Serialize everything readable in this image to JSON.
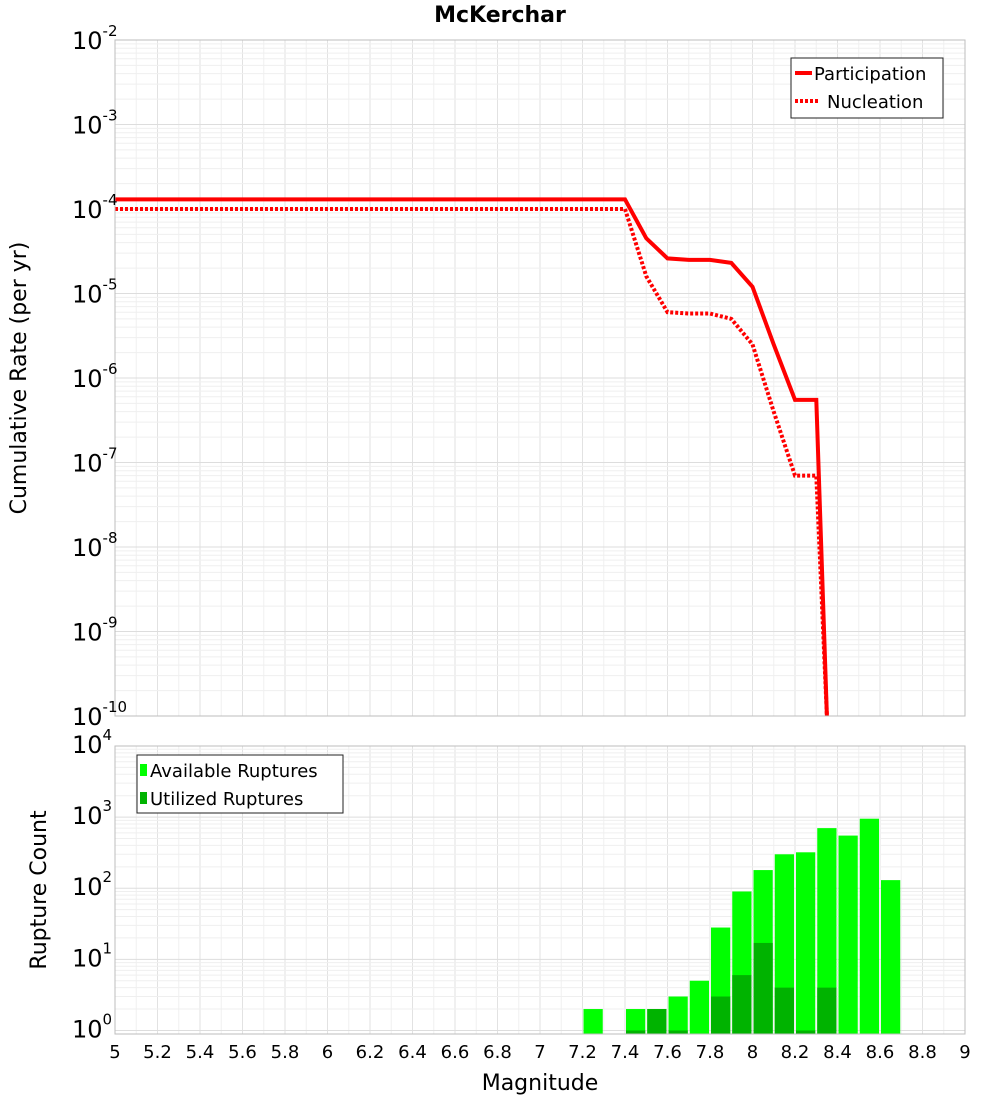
{
  "chart_data": [
    {
      "id": "cumulative-rate-panel",
      "type": "line",
      "title": "McKerchar",
      "xlabel": "",
      "ylabel": "Cumulative Rate (per yr)",
      "xlim": [
        5,
        9
      ],
      "ylim_log10": [
        -10,
        -2
      ],
      "yscale": "log",
      "ytick_exponents": [
        "-2",
        "-3",
        "-4",
        "-5",
        "-6",
        "-7",
        "-8",
        "-9",
        "-10"
      ],
      "grid": true,
      "legend_position": "top-right",
      "series": [
        {
          "name": "Participation",
          "style": "solid",
          "color": "#ff0000",
          "x": [
            5.0,
            7.4,
            7.5,
            7.6,
            7.7,
            7.8,
            7.9,
            8.0,
            8.1,
            8.2,
            8.3,
            8.35
          ],
          "y": [
            0.00013,
            0.00013,
            4.5e-05,
            2.6e-05,
            2.5e-05,
            2.5e-05,
            2.3e-05,
            1.2e-05,
            2.5e-06,
            5.5e-07,
            5.5e-07,
            1e-10
          ]
        },
        {
          "name": "Nucleation",
          "style": "dotted",
          "color": "#ff0000",
          "x": [
            5.0,
            7.4,
            7.5,
            7.6,
            7.7,
            7.8,
            7.9,
            8.0,
            8.1,
            8.2,
            8.3,
            8.35
          ],
          "y": [
            0.0001,
            0.0001,
            1.6e-05,
            6e-06,
            5.8e-06,
            5.8e-06,
            5e-06,
            2.5e-06,
            4e-07,
            7e-08,
            7e-08,
            1e-10
          ]
        }
      ]
    },
    {
      "id": "rupture-count-panel",
      "type": "bar",
      "title": "",
      "xlabel": "Magnitude",
      "ylabel": "Rupture Count",
      "xlim": [
        5,
        9
      ],
      "ylim_log10": [
        -0.05,
        4
      ],
      "yscale": "log",
      "ytick_exponents": [
        "0",
        "1",
        "2",
        "3",
        "4"
      ],
      "xtick_labels": [
        "5",
        "5.2",
        "5.4",
        "5.6",
        "5.8",
        "6",
        "6.2",
        "6.4",
        "6.6",
        "6.8",
        "7",
        "7.2",
        "7.4",
        "7.6",
        "7.8",
        "8",
        "8.2",
        "8.4",
        "8.6",
        "8.8",
        "9"
      ],
      "grid": true,
      "legend_position": "top-left",
      "bin_width": 0.1,
      "series": [
        {
          "name": "Available Ruptures",
          "color": "#00ff00",
          "x": [
            7.25,
            7.45,
            7.55,
            7.65,
            7.75,
            7.85,
            7.95,
            8.05,
            8.15,
            8.25,
            8.35,
            8.45,
            8.55,
            8.65
          ],
          "values": [
            2,
            2,
            2,
            3,
            5,
            28,
            90,
            180,
            300,
            320,
            700,
            550,
            950,
            130
          ]
        },
        {
          "name": "Utilized Ruptures",
          "color": "#00b300",
          "x": [
            7.45,
            7.55,
            7.65,
            7.85,
            7.95,
            8.05,
            8.15,
            8.25,
            8.35
          ],
          "values": [
            1,
            2,
            1,
            3,
            6,
            17,
            4,
            1,
            4
          ]
        }
      ]
    }
  ]
}
